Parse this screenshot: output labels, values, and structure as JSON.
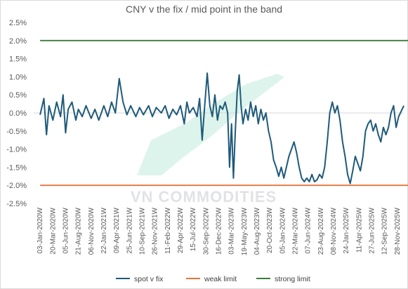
{
  "chart_data": {
    "type": "line",
    "title": "CNY v the fix / mid point in the band",
    "xlabel": "",
    "ylabel": "",
    "ylim": [
      -2.5,
      2.5
    ],
    "y_ticks": [
      "2.5%",
      "2.0%",
      "1.5%",
      "1.0%",
      "0.5%",
      "0.0%",
      "-0.5%",
      "-1.0%",
      "-1.5%",
      "-2.0%",
      "-2.5%"
    ],
    "x_ticks": [
      "03-Jan-2020W",
      "20-Mar-2020W",
      "05-Jun-2020W",
      "21-Aug-2020W",
      "06-Nov-2020W",
      "22-Jan-2021W",
      "09-Apr-2021W",
      "25-Jun-2021W",
      "10-Sep-2021W",
      "26-Nov-2021W",
      "11-Feb-2022W",
      "29-Apr-2022W",
      "15-Jul-2022W",
      "30-Sep-2022W",
      "16-Dec-2022W",
      "03-Mar-2023W",
      "19-May-2023W",
      "04-Aug-2023W",
      "20-Oct-2023W",
      "05-Jan-2024W",
      "22-Mar-2024W",
      "07-Jun-2024W",
      "23-Aug-2024W",
      "08-Nov-2024W",
      "24-Jan-2025W",
      "11-Apr-2025W",
      "27-Jun-2025W",
      "12-Sep-2025W",
      "28-Nov-2025W"
    ],
    "grid": false,
    "legend_position": "bottom",
    "series": [
      {
        "name": "spot v fix",
        "color": "#1f5a7a",
        "points": [
          [
            0,
            -0.05
          ],
          [
            0.3,
            0.4
          ],
          [
            0.5,
            -0.6
          ],
          [
            0.7,
            0.2
          ],
          [
            1.0,
            -0.2
          ],
          [
            1.3,
            0.3
          ],
          [
            1.6,
            -0.1
          ],
          [
            1.8,
            0.5
          ],
          [
            2.0,
            -0.55
          ],
          [
            2.2,
            0.1
          ],
          [
            2.5,
            0.3
          ],
          [
            2.8,
            -0.2
          ],
          [
            3.0,
            0.1
          ],
          [
            3.3,
            -0.1
          ],
          [
            3.6,
            0.2
          ],
          [
            4.0,
            -0.15
          ],
          [
            4.3,
            0.1
          ],
          [
            4.6,
            -0.2
          ],
          [
            5.0,
            0.2
          ],
          [
            5.3,
            -0.1
          ],
          [
            5.6,
            0.3
          ],
          [
            5.9,
            0.0
          ],
          [
            6.2,
            0.95
          ],
          [
            6.5,
            0.3
          ],
          [
            6.8,
            -0.05
          ],
          [
            7.1,
            0.2
          ],
          [
            7.5,
            -0.1
          ],
          [
            7.8,
            0.15
          ],
          [
            8.1,
            -0.05
          ],
          [
            8.5,
            0.2
          ],
          [
            8.8,
            -0.1
          ],
          [
            9.1,
            0.15
          ],
          [
            9.5,
            0.0
          ],
          [
            9.8,
            0.2
          ],
          [
            10.1,
            -0.15
          ],
          [
            10.4,
            0.1
          ],
          [
            10.7,
            -0.05
          ],
          [
            11.0,
            0.2
          ],
          [
            11.3,
            -0.3
          ],
          [
            11.5,
            0.3
          ],
          [
            11.7,
            0.0
          ],
          [
            12.0,
            0.15
          ],
          [
            12.3,
            -0.1
          ],
          [
            12.5,
            0.4
          ],
          [
            12.7,
            -0.75
          ],
          [
            12.9,
            0.2
          ],
          [
            13.1,
            1.1
          ],
          [
            13.3,
            0.2
          ],
          [
            13.5,
            -0.1
          ],
          [
            13.7,
            0.5
          ],
          [
            13.9,
            -0.2
          ],
          [
            14.1,
            0.2
          ],
          [
            14.3,
            0.1
          ],
          [
            14.5,
            0.3
          ],
          [
            14.7,
            0.0
          ],
          [
            14.85,
            -1.5
          ],
          [
            15.0,
            -0.3
          ],
          [
            15.15,
            -1.8
          ],
          [
            15.3,
            -0.5
          ],
          [
            15.45,
            0.6
          ],
          [
            15.6,
            1.05
          ],
          [
            15.75,
            0.2
          ],
          [
            15.9,
            -0.3
          ],
          [
            16.1,
            0.1
          ],
          [
            16.3,
            -0.2
          ],
          [
            16.5,
            0.3
          ],
          [
            16.7,
            -0.1
          ],
          [
            16.9,
            0.2
          ],
          [
            17.1,
            -0.3
          ],
          [
            17.3,
            0.1
          ],
          [
            17.5,
            -0.2
          ],
          [
            17.7,
            0.0
          ],
          [
            17.9,
            -0.5
          ],
          [
            18.1,
            -0.8
          ],
          [
            18.3,
            -1.3
          ],
          [
            18.5,
            -1.5
          ],
          [
            18.7,
            -1.75
          ],
          [
            18.9,
            -1.5
          ],
          [
            19.1,
            -1.8
          ],
          [
            19.3,
            -1.5
          ],
          [
            19.5,
            -1.2
          ],
          [
            19.7,
            -1.0
          ],
          [
            19.9,
            -0.8
          ],
          [
            20.1,
            -1.1
          ],
          [
            20.3,
            -1.5
          ],
          [
            20.5,
            -1.8
          ],
          [
            20.7,
            -1.9
          ],
          [
            20.9,
            -1.8
          ],
          [
            21.1,
            -1.9
          ],
          [
            21.3,
            -1.7
          ],
          [
            21.5,
            -1.9
          ],
          [
            21.7,
            -1.85
          ],
          [
            21.9,
            -1.7
          ],
          [
            22.1,
            -1.8
          ],
          [
            22.3,
            -1.5
          ],
          [
            22.5,
            -0.8
          ],
          [
            22.7,
            0.0
          ],
          [
            22.9,
            0.3
          ],
          [
            23.1,
            0.0
          ],
          [
            23.3,
            0.2
          ],
          [
            23.5,
            -0.2
          ],
          [
            23.7,
            -0.8
          ],
          [
            23.9,
            -1.2
          ],
          [
            24.1,
            -1.7
          ],
          [
            24.3,
            -1.95
          ],
          [
            24.5,
            -1.6
          ],
          [
            24.7,
            -1.2
          ],
          [
            24.9,
            -1.4
          ],
          [
            25.1,
            -1.6
          ],
          [
            25.3,
            -1.2
          ],
          [
            25.5,
            -0.5
          ],
          [
            25.7,
            -0.3
          ],
          [
            25.9,
            -0.2
          ],
          [
            26.1,
            -0.5
          ],
          [
            26.3,
            -0.3
          ],
          [
            26.5,
            -0.6
          ],
          [
            26.7,
            -0.8
          ],
          [
            26.9,
            -0.4
          ],
          [
            27.1,
            -0.6
          ],
          [
            27.3,
            -0.4
          ],
          [
            27.5,
            0.0
          ],
          [
            27.7,
            0.2
          ],
          [
            27.9,
            -0.4
          ],
          [
            28.1,
            -0.1
          ],
          [
            28.3,
            0.05
          ],
          [
            28.5,
            0.2
          ]
        ]
      },
      {
        "name": "weak limit",
        "color": "#e8743b",
        "points": [
          [
            0,
            -2.0
          ],
          [
            28.9,
            -2.0
          ]
        ]
      },
      {
        "name": "strong limit",
        "color": "#3a7d3a",
        "points": [
          [
            0,
            2.0
          ],
          [
            28.9,
            2.0
          ]
        ]
      }
    ]
  },
  "watermark": {
    "text": "VN COMMODITIES"
  }
}
